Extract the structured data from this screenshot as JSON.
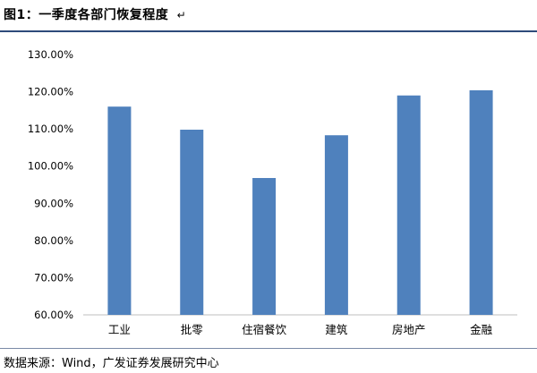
{
  "header": {
    "title": "图1：一季度各部门恢复程度",
    "mark": "↵"
  },
  "footer": {
    "source": "数据来源：Wind，广发证券发展研究中心"
  },
  "colors": {
    "bar": "#4F81BD",
    "title_rule": "#2e4b7a",
    "axis": "#bfbfbf"
  },
  "chart_data": {
    "type": "bar",
    "title": "",
    "xlabel": "",
    "ylabel": "",
    "categories": [
      "工业",
      "批零",
      "住宿餐饮",
      "建筑",
      "房地产",
      "金融"
    ],
    "values": [
      116.0,
      109.8,
      96.8,
      108.3,
      119.0,
      120.4
    ],
    "ylim": [
      60,
      130
    ],
    "yticks": [
      "60.00%",
      "70.00%",
      "80.00%",
      "90.00%",
      "100.00%",
      "110.00%",
      "120.00%",
      "130.00%"
    ],
    "ytick_values": [
      60,
      70,
      80,
      90,
      100,
      110,
      120,
      130
    ],
    "grid": false,
    "legend": "none"
  }
}
